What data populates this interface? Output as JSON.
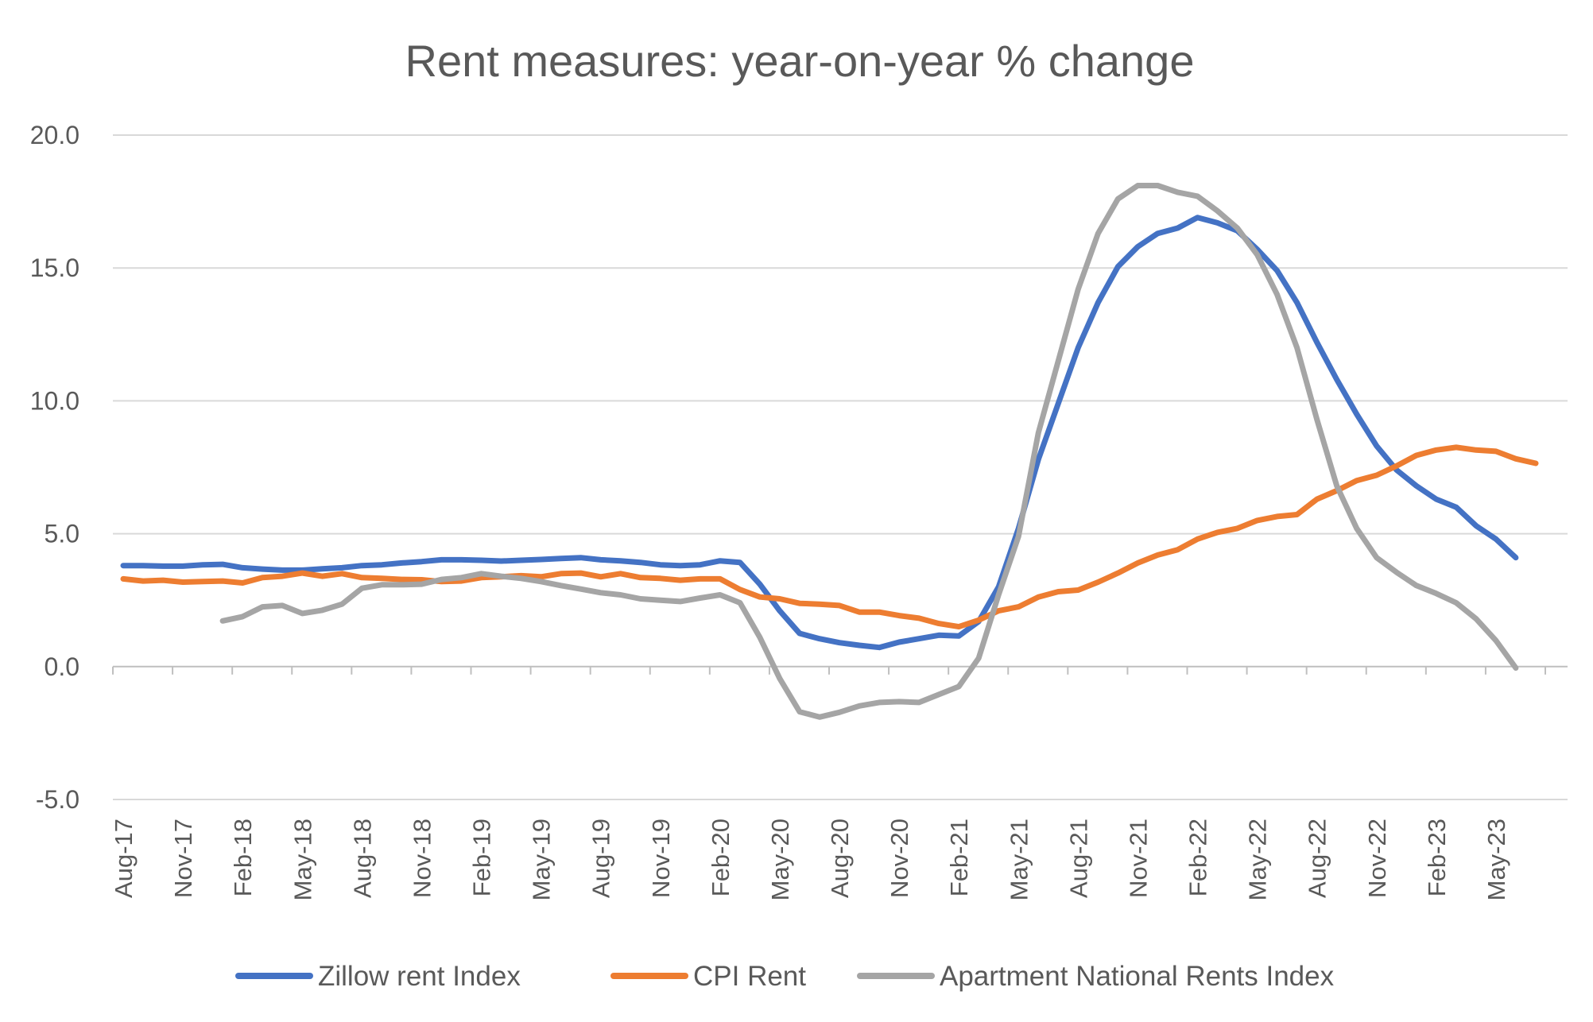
{
  "chart_data": {
    "type": "line",
    "title": "Rent measures: year-on-year % change",
    "xlabel": "",
    "ylabel": "",
    "ylim": [
      -5,
      20
    ],
    "yticks": [
      20,
      15,
      10,
      5,
      0,
      -5
    ],
    "ytick_labels": [
      "20.0",
      "15.0",
      "10.0",
      "5.0",
      "0.0",
      "-5.0"
    ],
    "grid": true,
    "legend_position": "bottom",
    "x_start": "Aug-17",
    "x_end": "Aug-23",
    "num_points": 73,
    "x_tick_every": 3,
    "x_tick_labels": [
      "Aug-17",
      "Nov-17",
      "Feb-18",
      "May-18",
      "Aug-18",
      "Nov-18",
      "Feb-19",
      "May-19",
      "Aug-19",
      "Nov-19",
      "Feb-20",
      "May-20",
      "Aug-20",
      "Nov-20",
      "Feb-21",
      "May-21",
      "Aug-21",
      "Nov-21",
      "Feb-22",
      "May-22",
      "Aug-22",
      "Nov-22",
      "Feb-23",
      "May-23"
    ],
    "series": [
      {
        "name": "Zillow rent Index",
        "color": "#4472c4",
        "values": [
          3.8,
          3.8,
          3.78,
          3.78,
          3.83,
          3.85,
          3.72,
          3.67,
          3.63,
          3.63,
          3.68,
          3.72,
          3.8,
          3.83,
          3.9,
          3.95,
          4.02,
          4.02,
          4.0,
          3.97,
          4.0,
          4.03,
          4.07,
          4.1,
          4.02,
          3.98,
          3.92,
          3.83,
          3.8,
          3.83,
          3.98,
          3.92,
          3.1,
          2.1,
          1.25,
          1.05,
          0.9,
          0.8,
          0.72,
          0.92,
          1.05,
          1.18,
          1.15,
          1.7,
          3.0,
          5.2,
          7.8,
          9.9,
          12.0,
          13.7,
          15.05,
          15.8,
          16.3,
          16.5,
          16.9,
          16.7,
          16.4,
          15.7,
          14.9,
          13.7,
          12.2,
          10.8,
          9.5,
          8.3,
          7.4,
          6.8,
          6.3,
          6.0,
          5.3,
          4.8,
          4.1,
          null,
          null
        ]
      },
      {
        "name": "CPI Rent",
        "color": "#ed7d31",
        "values": [
          3.3,
          3.22,
          3.25,
          3.18,
          3.2,
          3.22,
          3.15,
          3.35,
          3.4,
          3.52,
          3.4,
          3.5,
          3.35,
          3.32,
          3.28,
          3.27,
          3.2,
          3.22,
          3.35,
          3.38,
          3.42,
          3.38,
          3.5,
          3.52,
          3.38,
          3.5,
          3.35,
          3.32,
          3.25,
          3.3,
          3.3,
          2.9,
          2.62,
          2.55,
          2.38,
          2.35,
          2.3,
          2.05,
          2.05,
          1.92,
          1.82,
          1.62,
          1.5,
          1.75,
          2.1,
          2.25,
          2.62,
          2.82,
          2.88,
          3.18,
          3.52,
          3.9,
          4.2,
          4.4,
          4.8,
          5.05,
          5.2,
          5.5,
          5.65,
          5.72,
          6.3,
          6.62,
          7.0,
          7.2,
          7.55,
          7.95,
          8.15,
          8.25,
          8.15,
          8.1,
          7.82,
          7.65,
          null
        ]
      },
      {
        "name": "Apartment National Rents Index",
        "color": "#a5a5a5",
        "values": [
          null,
          null,
          null,
          null,
          null,
          1.72,
          1.88,
          2.25,
          2.3,
          2.0,
          2.12,
          2.35,
          2.95,
          3.08,
          3.08,
          3.1,
          3.28,
          3.35,
          3.5,
          3.4,
          3.32,
          3.2,
          3.05,
          2.92,
          2.78,
          2.7,
          2.55,
          2.5,
          2.45,
          2.58,
          2.7,
          2.4,
          1.1,
          -0.45,
          -1.7,
          -1.9,
          -1.72,
          -1.48,
          -1.35,
          -1.32,
          -1.35,
          -1.05,
          -0.75,
          0.32,
          2.7,
          4.9,
          8.8,
          11.5,
          14.2,
          16.3,
          17.6,
          18.1,
          18.1,
          17.85,
          17.7,
          17.15,
          16.5,
          15.5,
          14.0,
          12.0,
          9.3,
          6.8,
          5.2,
          4.1,
          3.55,
          3.05,
          2.75,
          2.4,
          1.8,
          0.98,
          -0.05,
          null,
          null
        ]
      }
    ]
  }
}
